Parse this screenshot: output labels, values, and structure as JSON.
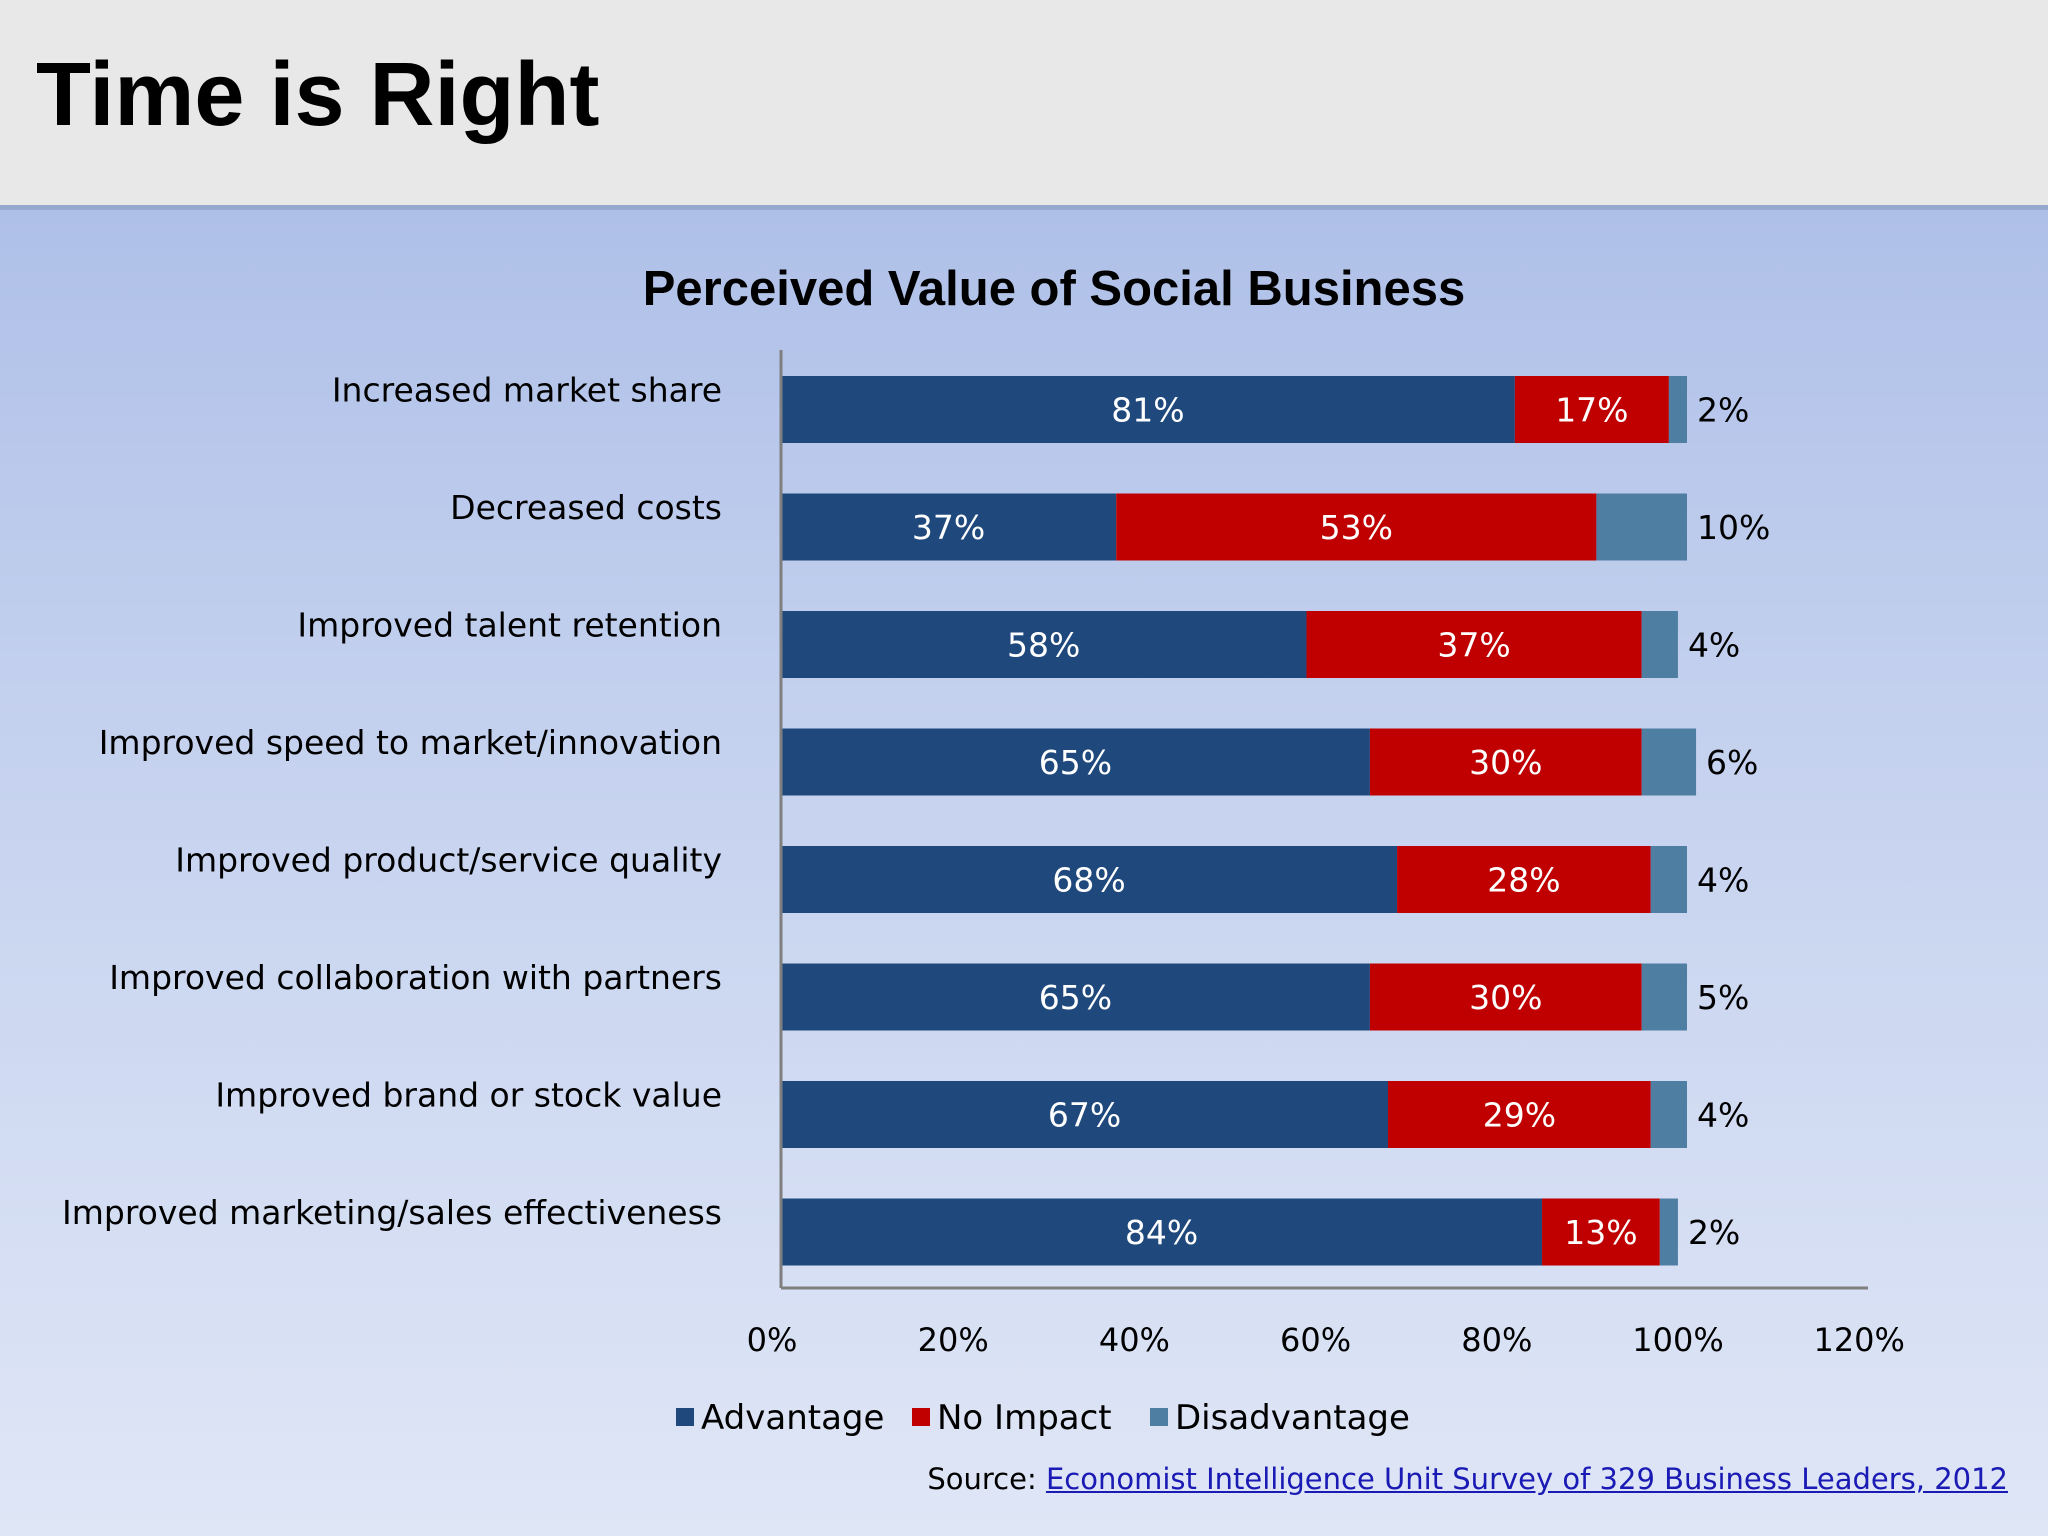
{
  "slide": {
    "title": "Time is Right"
  },
  "source": {
    "prefix": "Source: ",
    "link_text": "Economist Intelligence Unit Survey of 329 Business Leaders, 2012"
  },
  "colors": {
    "advantage": "#1f497d",
    "no_impact": "#c00000",
    "disadvantage": "#4f7ea3",
    "axis": "#7f7f7f"
  },
  "chart_data": {
    "type": "bar",
    "orientation": "horizontal",
    "stacked": true,
    "title": "Perceived Value of Social Business",
    "categories": [
      "Increased market share",
      "Decreased costs",
      "Improved talent retention",
      "Improved speed to market/innovation",
      "Improved product/service quality",
      "Improved collaboration with partners",
      "Improved brand or stock value",
      "Improved marketing/sales effectiveness"
    ],
    "series": [
      {
        "name": "Advantage",
        "values": [
          81,
          37,
          58,
          65,
          68,
          65,
          67,
          84
        ],
        "labels": [
          "81%",
          "37%",
          "58%",
          "65%",
          "68%",
          "65%",
          "67%",
          "84%"
        ]
      },
      {
        "name": "No Impact",
        "values": [
          17,
          53,
          37,
          30,
          28,
          30,
          29,
          13
        ],
        "labels": [
          "17%",
          "53%",
          "37%",
          "30%",
          "28%",
          "30%",
          "29%",
          "13%"
        ]
      },
      {
        "name": "Disadvantage",
        "values": [
          2,
          10,
          4,
          6,
          4,
          5,
          4,
          2
        ],
        "labels": [
          "2%",
          "10%",
          "4%",
          "6%",
          "4%",
          "5%",
          "4%",
          "2%"
        ]
      }
    ],
    "xlim": [
      0,
      120
    ],
    "xticks": [
      0,
      20,
      40,
      60,
      80,
      100,
      120
    ],
    "xtick_labels": [
      "0%",
      "20%",
      "40%",
      "60%",
      "80%",
      "100%",
      "120%"
    ],
    "xlabel": "",
    "ylabel": "",
    "grid": false,
    "legend": [
      "Advantage",
      "No Impact",
      "Disadvantage"
    ],
    "legend_position": "bottom"
  }
}
